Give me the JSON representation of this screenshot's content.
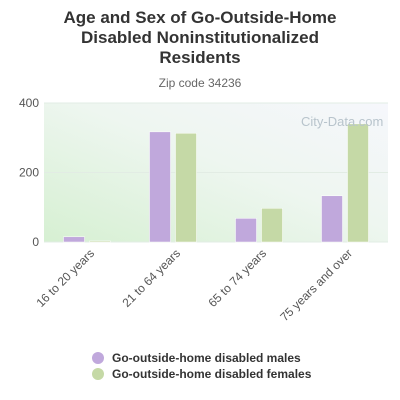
{
  "title_lines": [
    "Age and Sex of Go-Outside-Home",
    "Disabled Noninstitutionalized",
    "Residents"
  ],
  "subtitle": "Zip code 34236",
  "watermark": "City-Data.com",
  "colors": {
    "males": "#c0a8dc",
    "females": "#c5d9a6"
  },
  "chart_data": {
    "type": "bar",
    "categories": [
      "16 to 20 years",
      "21 to 64 years",
      "65 to 74 years",
      "75 years and over"
    ],
    "series": [
      {
        "name": "Go-outside-home disabled males",
        "values": [
          15,
          317,
          68,
          133
        ]
      },
      {
        "name": "Go-outside-home disabled females",
        "values": [
          3,
          313,
          97,
          340
        ]
      }
    ],
    "yticks": [
      0,
      200,
      400
    ],
    "ylim": [
      0,
      400
    ],
    "grid": true,
    "legend_position": "bottom"
  }
}
